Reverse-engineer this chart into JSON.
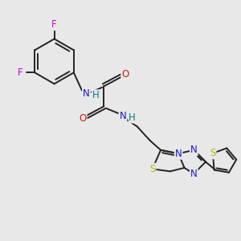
{
  "bg_color": "#e8e8e8",
  "bond_color": "#222222",
  "bond_width": 1.4,
  "atom_colors": {
    "N": "#1a1acc",
    "O": "#cc1a1a",
    "S": "#b8b800",
    "F": "#cc00cc",
    "H": "#008080",
    "C": "#222222"
  },
  "font_size": 8.5,
  "fig_size": [
    3.0,
    3.0
  ],
  "dpi": 100
}
